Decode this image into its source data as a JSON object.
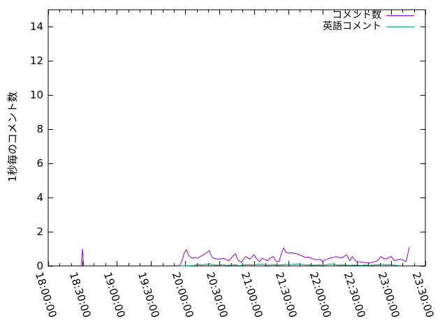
{
  "chart_data": {
    "type": "line",
    "title": "",
    "xlabel": "",
    "ylabel": "1秒毎のコメント数",
    "ylim": [
      0,
      15
    ],
    "y_ticks": [
      0,
      2,
      4,
      6,
      8,
      10,
      12,
      14
    ],
    "x_range": [
      "18:00:00",
      "23:30:00"
    ],
    "x_ticks": [
      "18:00:00",
      "18:30:00",
      "19:00:00",
      "19:30:00",
      "20:00:00",
      "20:30:00",
      "21:00:00",
      "21:30:00",
      "22:00:00",
      "22:30:00",
      "23:00:00",
      "23:30:00"
    ],
    "x_minor_interval_min": 10,
    "grid": false,
    "legend_position": "top-right-inside",
    "axis_color": "#000000",
    "background_color": "#ffffff",
    "series": [
      {
        "name": "コメント数",
        "color": "#9400d3",
        "segments": [
          [
            [
              "18:29",
              0
            ],
            [
              "18:30",
              1.0
            ],
            [
              "18:31",
              0
            ]
          ],
          [
            [
              "19:55",
              0
            ],
            [
              "19:57",
              0.3
            ],
            [
              "19:59",
              0.75
            ],
            [
              "20:01",
              0.95
            ],
            [
              "20:03",
              0.6
            ],
            [
              "20:06",
              0.45
            ],
            [
              "20:08",
              0.5
            ],
            [
              "20:11",
              0.45
            ],
            [
              "20:13",
              0.55
            ],
            [
              "20:16",
              0.65
            ],
            [
              "20:18",
              0.75
            ],
            [
              "20:21",
              0.9
            ],
            [
              "20:23",
              0.55
            ],
            [
              "20:25",
              0.45
            ],
            [
              "20:28",
              0.4
            ],
            [
              "20:30",
              0.4
            ],
            [
              "20:33",
              0.45
            ],
            [
              "20:35",
              0.4
            ],
            [
              "20:38",
              0.3
            ],
            [
              "20:40",
              0.45
            ],
            [
              "20:42",
              0.6
            ],
            [
              "20:44",
              0.7
            ],
            [
              "20:46",
              0.35
            ],
            [
              "20:49",
              0.2
            ],
            [
              "20:51",
              0.4
            ],
            [
              "20:53",
              0.55
            ],
            [
              "20:56",
              0.4
            ],
            [
              "20:58",
              0.5
            ],
            [
              "21:00",
              0.65
            ],
            [
              "21:02",
              0.45
            ],
            [
              "21:05",
              0.25
            ],
            [
              "21:07",
              0.45
            ],
            [
              "21:09",
              0.4
            ],
            [
              "21:12",
              0.3
            ],
            [
              "21:14",
              0.45
            ],
            [
              "21:17",
              0.55
            ],
            [
              "21:19",
              0.3
            ],
            [
              "21:22",
              0.25
            ],
            [
              "21:24",
              0.7
            ],
            [
              "21:26",
              1.05
            ],
            [
              "21:28",
              0.8
            ],
            [
              "21:31",
              0.75
            ],
            [
              "21:33",
              0.78
            ],
            [
              "21:36",
              0.72
            ],
            [
              "21:38",
              0.7
            ],
            [
              "21:40",
              0.65
            ],
            [
              "21:43",
              0.55
            ],
            [
              "21:45",
              0.5
            ],
            [
              "21:48",
              0.52
            ],
            [
              "21:50",
              0.45
            ],
            [
              "21:53",
              0.4
            ],
            [
              "21:55",
              0.35
            ],
            [
              "21:58",
              0.4
            ],
            [
              "22:00",
              0.25
            ],
            [
              "22:02",
              0.35
            ],
            [
              "22:04",
              0.4
            ],
            [
              "22:07",
              0.45
            ],
            [
              "22:09",
              0.5
            ],
            [
              "22:12",
              0.55
            ],
            [
              "22:14",
              0.5
            ],
            [
              "22:17",
              0.48
            ],
            [
              "22:19",
              0.55
            ],
            [
              "22:21",
              0.65
            ],
            [
              "22:24",
              0.3
            ],
            [
              "22:26",
              0.55
            ],
            [
              "22:29",
              0.3
            ],
            [
              "22:31",
              0.25
            ],
            [
              "22:34",
              0.22
            ],
            [
              "22:36",
              0.2
            ],
            [
              "22:38",
              0.2
            ],
            [
              "22:41",
              0.18
            ],
            [
              "22:43",
              0.2
            ],
            [
              "22:46",
              0.25
            ],
            [
              "22:48",
              0.3
            ],
            [
              "22:51",
              0.55
            ],
            [
              "22:53",
              0.45
            ],
            [
              "22:56",
              0.4
            ],
            [
              "22:58",
              0.5
            ],
            [
              "23:00",
              0.55
            ],
            [
              "23:03",
              0.3
            ],
            [
              "23:05",
              0.35
            ],
            [
              "23:08",
              0.4
            ],
            [
              "23:10",
              0.35
            ],
            [
              "23:13",
              0.25
            ],
            [
              "23:14",
              0.5
            ],
            [
              "23:16",
              1.1
            ]
          ]
        ]
      },
      {
        "name": "英語コメント",
        "color": "#009e73",
        "segments": [
          [
            [
              "19:55",
              0
            ],
            [
              "20:07",
              0.02
            ],
            [
              "20:11",
              0.08
            ],
            [
              "20:14",
              0.05
            ],
            [
              "20:18",
              0.1
            ],
            [
              "20:22",
              0.12
            ],
            [
              "20:25",
              0.05
            ],
            [
              "20:29",
              0.04
            ],
            [
              "20:33",
              0.08
            ],
            [
              "20:36",
              0.03
            ],
            [
              "20:40",
              0.05
            ],
            [
              "20:44",
              0.06
            ],
            [
              "20:47",
              0.02
            ],
            [
              "20:51",
              0.05
            ],
            [
              "20:55",
              0.08
            ],
            [
              "20:58",
              0.05
            ],
            [
              "21:02",
              0.08
            ],
            [
              "21:06",
              0.12
            ],
            [
              "21:09",
              0.06
            ],
            [
              "21:13",
              0.04
            ],
            [
              "21:17",
              0.08
            ],
            [
              "21:20",
              0.04
            ],
            [
              "21:24",
              0.06
            ],
            [
              "21:28",
              0.1
            ],
            [
              "21:31",
              0.07
            ],
            [
              "21:35",
              0.1
            ],
            [
              "21:39",
              0.12
            ],
            [
              "21:42",
              0.08
            ],
            [
              "21:46",
              0.06
            ],
            [
              "21:50",
              0.05
            ],
            [
              "21:53",
              0.04
            ],
            [
              "21:57",
              0.06
            ],
            [
              "22:01",
              0.03
            ],
            [
              "22:04",
              0.08
            ],
            [
              "22:08",
              0.12
            ],
            [
              "22:12",
              0.06
            ],
            [
              "22:15",
              0.04
            ],
            [
              "22:19",
              0.06
            ],
            [
              "22:23",
              0.03
            ],
            [
              "22:26",
              0.05
            ],
            [
              "22:30",
              0.04
            ],
            [
              "22:34",
              0.03
            ],
            [
              "22:37",
              0.05
            ],
            [
              "22:41",
              0.03
            ],
            [
              "22:45",
              0.05
            ],
            [
              "22:48",
              0.06
            ],
            [
              "22:52",
              0.1
            ],
            [
              "22:56",
              0.05
            ],
            [
              "22:59",
              0.08
            ],
            [
              "23:03",
              0.04
            ],
            [
              "23:07",
              0.02
            ]
          ]
        ]
      }
    ]
  }
}
